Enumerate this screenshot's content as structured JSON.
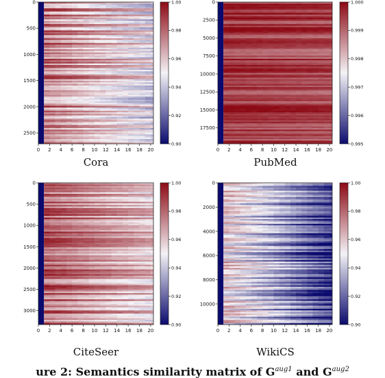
{
  "caption": {
    "prefix": "ure 2: Semantics similarity matrix of G",
    "sup1": "aug1",
    "middle": " and G",
    "sup2": "aug2"
  },
  "colors": {
    "low": "#0b0b6e",
    "mid": "#f4f2f6",
    "high": "#8c0a15"
  },
  "chart_data": [
    {
      "type": "heatmap",
      "title": "Cora",
      "x_ticks": [
        "0",
        "2",
        "4",
        "6",
        "8",
        "10",
        "12",
        "14",
        "16",
        "18",
        "20"
      ],
      "x_range": [
        0,
        20.5
      ],
      "y_ticks": [
        "0",
        "500",
        "1000",
        "1500",
        "2000",
        "2500"
      ],
      "y_range": [
        0,
        2708
      ],
      "colorbar_ticks": [
        "1.00",
        "0.98",
        "0.96",
        "0.94",
        "0.92",
        "0.90"
      ],
      "colorbar_range": [
        0.9,
        1.0
      ],
      "first_column_value": 0.9,
      "row_mean_value": 0.975,
      "decay_per_column": 0.0015,
      "row_spread": 0.02
    },
    {
      "type": "heatmap",
      "title": "PubMed",
      "x_ticks": [
        "0",
        "2",
        "4",
        "6",
        "8",
        "10",
        "12",
        "14",
        "16",
        "18",
        "20"
      ],
      "x_range": [
        0,
        20.5
      ],
      "y_ticks": [
        "0",
        "2500",
        "5000",
        "7500",
        "10000",
        "12500",
        "15000",
        "17500"
      ],
      "y_range": [
        0,
        19717
      ],
      "colorbar_ticks": [
        "1.000",
        "0.999",
        "0.998",
        "0.997",
        "0.996",
        "0.995"
      ],
      "colorbar_range": [
        0.995,
        1.0
      ],
      "first_column_value": 0.995,
      "row_mean_value": 0.9995,
      "decay_per_column": 1e-05,
      "row_spread": 0.0006
    },
    {
      "type": "heatmap",
      "title": "CiteSeer",
      "x_ticks": [
        "0",
        "2",
        "4",
        "6",
        "8",
        "10",
        "12",
        "14",
        "16",
        "18",
        "20"
      ],
      "x_range": [
        0,
        20.5
      ],
      "y_ticks": [
        "0",
        "500",
        "1000",
        "1500",
        "2000",
        "2500",
        "3000"
      ],
      "y_range": [
        0,
        3327
      ],
      "colorbar_ticks": [
        "1.00",
        "0.98",
        "0.96",
        "0.94",
        "0.92",
        "0.90"
      ],
      "colorbar_range": [
        0.9,
        1.0
      ],
      "first_column_value": 0.9,
      "row_mean_value": 0.98,
      "decay_per_column": 0.0012,
      "row_spread": 0.018
    },
    {
      "type": "heatmap",
      "title": "WikiCS",
      "x_ticks": [
        "0",
        "2",
        "4",
        "6",
        "8",
        "10",
        "12",
        "14",
        "16",
        "18",
        "20"
      ],
      "x_range": [
        0,
        20.5
      ],
      "y_ticks": [
        "0",
        "2000",
        "4000",
        "6000",
        "8000",
        "10000"
      ],
      "y_range": [
        0,
        11701
      ],
      "colorbar_ticks": [
        "1.00",
        "0.98",
        "0.96",
        "0.94",
        "0.92",
        "0.90"
      ],
      "colorbar_range": [
        0.9,
        1.0
      ],
      "first_column_value": 0.9,
      "row_mean_value": 0.955,
      "decay_per_column": 0.0025,
      "row_spread": 0.02
    }
  ]
}
